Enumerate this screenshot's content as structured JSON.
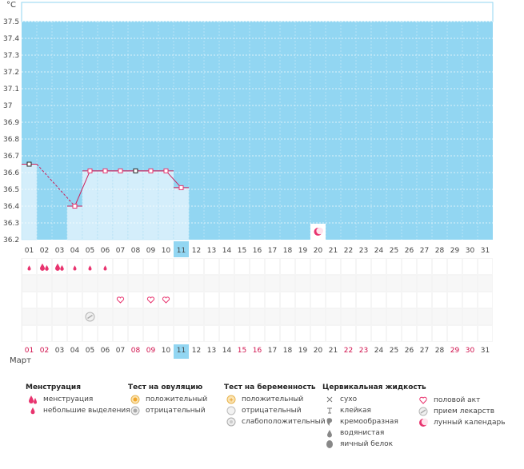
{
  "chart_data": {
    "type": "line",
    "unit": "°C",
    "month": "Март",
    "y_ticks": [
      "37.5",
      "37.4",
      "37.3",
      "37.2",
      "37.1",
      "37",
      "36.9",
      "36.8",
      "36.7",
      "36.6",
      "36.5",
      "36.4",
      "36.3",
      "36.2"
    ],
    "ylim": [
      36.2,
      37.5
    ],
    "x_labels": [
      "01",
      "02",
      "03",
      "04",
      "05",
      "06",
      "07",
      "08",
      "09",
      "10",
      "11",
      "12",
      "13",
      "14",
      "15",
      "16",
      "17",
      "18",
      "19",
      "20",
      "21",
      "22",
      "23",
      "24",
      "25",
      "26",
      "27",
      "28",
      "29",
      "30",
      "31"
    ],
    "today": "11",
    "red_days": [
      "01",
      "02",
      "08",
      "09",
      "15",
      "16",
      "22",
      "23",
      "29",
      "30"
    ],
    "temperatures": [
      {
        "day": "01",
        "value": 36.65,
        "marker": "black"
      },
      {
        "day": "04",
        "value": 36.4,
        "marker": "pink"
      },
      {
        "day": "05",
        "value": 36.61,
        "marker": "pink"
      },
      {
        "day": "06",
        "value": 36.61,
        "marker": "pink"
      },
      {
        "day": "07",
        "value": 36.61,
        "marker": "pink"
      },
      {
        "day": "08",
        "value": 36.61,
        "marker": "black"
      },
      {
        "day": "09",
        "value": 36.61,
        "marker": "pink"
      },
      {
        "day": "10",
        "value": 36.61,
        "marker": "pink"
      },
      {
        "day": "11",
        "value": 36.51,
        "marker": "pink"
      }
    ],
    "grid": true,
    "colors": {
      "plot_bg": "#92d6f2",
      "bar": "#d4eefb",
      "line": "#cc1f5a",
      "pink_marker": "#e8336e",
      "today": "#92d6f2"
    }
  },
  "rows": {
    "menstruation": [
      {
        "day": "01",
        "kind": "small"
      },
      {
        "day": "02",
        "kind": "heavy"
      },
      {
        "day": "03",
        "kind": "heavy"
      },
      {
        "day": "04",
        "kind": "small"
      },
      {
        "day": "05",
        "kind": "small"
      },
      {
        "day": "06",
        "kind": "small"
      }
    ],
    "intercourse": [
      "07",
      "09",
      "10"
    ],
    "medication": [
      "05"
    ],
    "moon": [
      "20"
    ]
  },
  "legend": {
    "menstruation": {
      "title": "Менструация",
      "items": [
        "менструация",
        "небольшие выделения"
      ]
    },
    "ovulation": {
      "title": "Тест на овуляцию",
      "items": [
        "положительный",
        "отрицательный"
      ]
    },
    "pregnancy": {
      "title": "Тест на беременность",
      "items": [
        "положительный",
        "отрицательный",
        "слабоположительный"
      ]
    },
    "cervical": {
      "title": "Цервикальная жидкость",
      "items": [
        "сухо",
        "клейкая",
        "кремообразная",
        "водянистая",
        "яичный белок"
      ]
    },
    "other": {
      "items": [
        "половой акт",
        "прием лекарств",
        "лунный календарь"
      ]
    }
  },
  "icons": {
    "drop": "drop-icon",
    "double_drop": "double-drop-icon",
    "heart": "heart-icon",
    "pill": "pill-icon",
    "moon": "moon-icon"
  }
}
